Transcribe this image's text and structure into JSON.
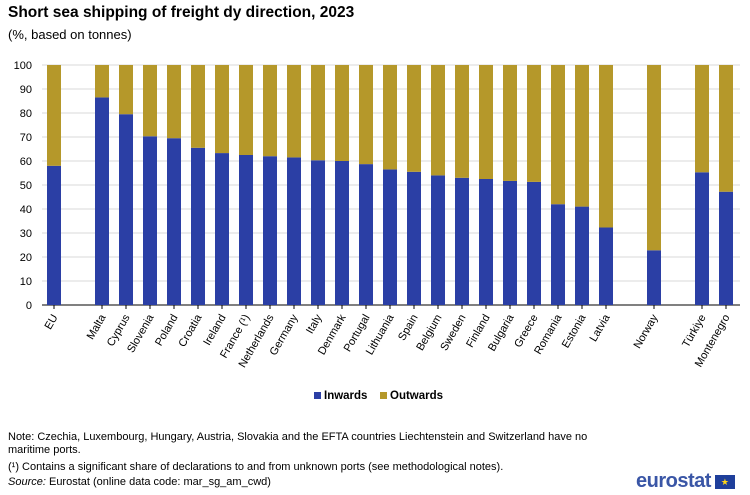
{
  "title": "Short sea shipping of freight dy direction, 2023",
  "subtitle": "(%, based on tonnes)",
  "chart_data": {
    "type": "bar",
    "stacked": true,
    "categories": [
      "EU",
      "Malta",
      "Cyprus",
      "Slovenia",
      "Poland",
      "Croatia",
      "Ireland",
      "France (¹)",
      "Netherlands",
      "Germany",
      "Italy",
      "Denmark",
      "Portugal",
      "Lithuania",
      "Spain",
      "Belgium",
      "Sweden",
      "Finland",
      "Bulgaria",
      "Greece",
      "Romania",
      "Estonia",
      "Latvia",
      "Norway",
      "Türkiye",
      "Montenegro"
    ],
    "series": [
      {
        "name": "Inwards",
        "color": "#2b3fa5",
        "values": [
          58,
          86.5,
          79.5,
          70.3,
          69.5,
          65.5,
          63.3,
          62.5,
          62,
          61.5,
          60.3,
          60,
          58.7,
          56.5,
          55.5,
          54,
          53,
          52.5,
          51.7,
          51.3,
          42,
          41,
          32.3,
          22.8,
          55.3,
          47.2
        ]
      },
      {
        "name": "Outwards",
        "color": "#b5982a",
        "values": [
          42,
          13.5,
          20.5,
          29.7,
          30.5,
          34.5,
          36.7,
          37.5,
          38,
          38.5,
          39.7,
          40,
          41.3,
          43.5,
          44.5,
          46,
          47,
          47.5,
          48.3,
          48.7,
          58,
          59,
          67.7,
          77.2,
          44.7,
          52.8
        ]
      }
    ],
    "y_ticks": [
      "0",
      "10",
      "20",
      "30",
      "40",
      "50",
      "60",
      "70",
      "80",
      "90",
      "100"
    ],
    "ylim": [
      0,
      100
    ],
    "grid": true,
    "legend": "bottom-center",
    "xlabel": "",
    "ylabel": ""
  },
  "notes": {
    "note1": "Note: Czechia, Luxembourg, Hungary, Austria, Slovakia and the EFTA countries Liechtenstein and Switzerland have no maritime ports.",
    "note2": "(¹) Contains a significant share of declarations to and from unknown ports (see methodological notes).",
    "source_label": "Source:",
    "source_text": " Eurostat (online data code: mar_sg_am_cwd)"
  },
  "logo": {
    "text": "eurostat",
    "flag_icon": "eu-flag-icon",
    "flag_glyph": "★"
  }
}
